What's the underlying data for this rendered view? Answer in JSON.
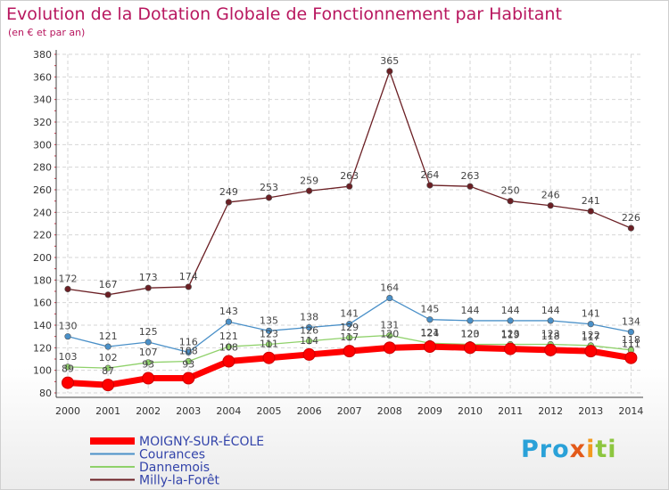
{
  "chart_data": {
    "type": "line",
    "title": "Evolution de la Dotation Globale de Fonctionnement par Habitant",
    "subtitle": "(en € et par an)",
    "x": [
      "2000",
      "2001",
      "2002",
      "2003",
      "2004",
      "2005",
      "2006",
      "2007",
      "2008",
      "2009",
      "2010",
      "2011",
      "2012",
      "2013",
      "2014"
    ],
    "ylim": [
      80,
      380
    ],
    "yticks": [
      80,
      100,
      120,
      140,
      160,
      180,
      200,
      220,
      240,
      260,
      280,
      300,
      320,
      340,
      360,
      380
    ],
    "grid": true,
    "series": [
      {
        "name": "MOIGNY-SUR-ÉCOLE",
        "color": "#ff0000",
        "values": [
          89,
          87,
          93,
          93,
          108,
          111,
          114,
          117,
          120,
          121,
          120,
          119,
          118,
          117,
          111
        ]
      },
      {
        "name": "Courances",
        "color": "#4a90c8",
        "values": [
          130,
          121,
          125,
          116,
          143,
          135,
          138,
          141,
          164,
          145,
          144,
          144,
          144,
          141,
          134
        ]
      },
      {
        "name": "Dannemois",
        "color": "#8fd16a",
        "values": [
          103,
          102,
          107,
          108,
          121,
          123,
          126,
          129,
          131,
          124,
          123,
          123,
          123,
          122,
          118
        ]
      },
      {
        "name": "Milly-la-Forêt",
        "color": "#6b1f24",
        "values": [
          172,
          167,
          173,
          174,
          249,
          253,
          259,
          263,
          365,
          264,
          263,
          250,
          246,
          241,
          226
        ]
      }
    ],
    "legend_position": "bottom-left"
  },
  "brand": {
    "p1": "Pro",
    "p2": "x",
    "p3": "i",
    "p4": "ti"
  }
}
